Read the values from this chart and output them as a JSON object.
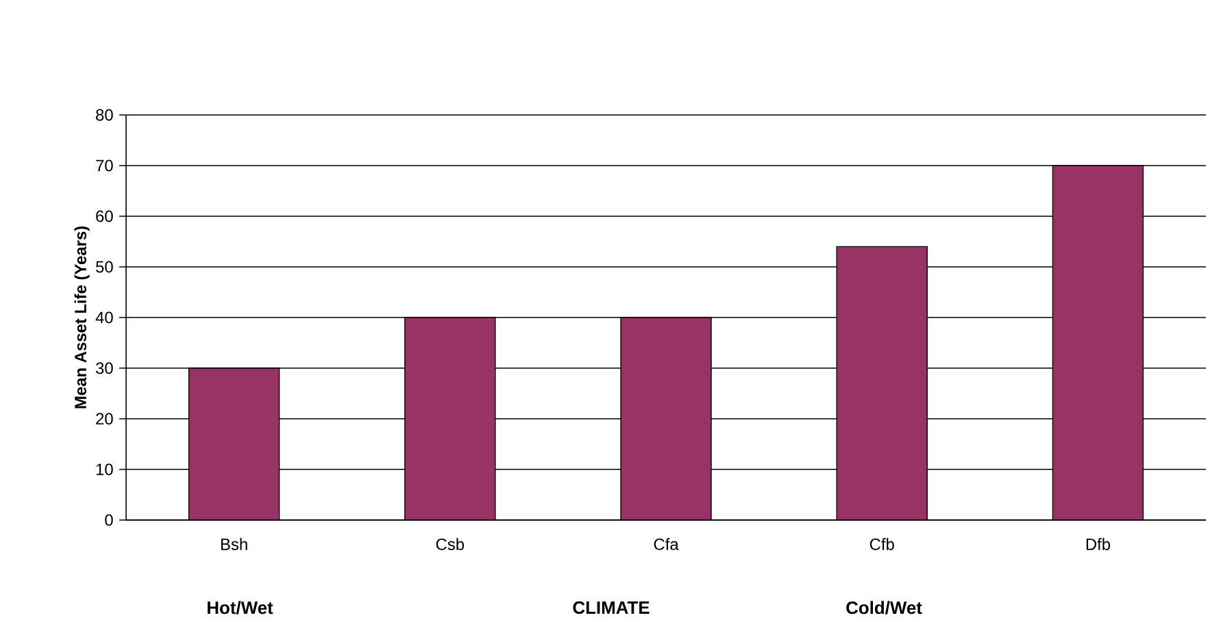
{
  "chart_data": {
    "type": "bar",
    "ylabel": "Mean Asset Life (Years)",
    "xlabel": "CLIMATE",
    "categories": [
      "Bsh",
      "Csb",
      "Cfa",
      "Cfb",
      "Dfb"
    ],
    "values": [
      30,
      40,
      40,
      54,
      70
    ],
    "color": "#993366",
    "ylim": [
      0,
      80
    ],
    "yticks": [
      0,
      10,
      20,
      30,
      40,
      50,
      60,
      70,
      80
    ],
    "grid": "y",
    "annotations": [
      "Hot/Wet",
      "Cold/Wet"
    ]
  }
}
